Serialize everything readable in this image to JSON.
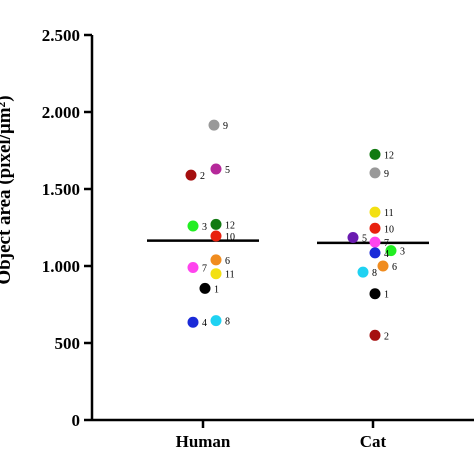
{
  "chart_data": {
    "type": "scatter",
    "ylabel": "Object area (pixel/μm²)",
    "ylim": [
      0,
      2500
    ],
    "y_ticks": [
      {
        "value": 0,
        "label": "0"
      },
      {
        "value": 500,
        "label": "500"
      },
      {
        "value": 1000,
        "label": "1.000"
      },
      {
        "value": 1500,
        "label": "1.500"
      },
      {
        "value": 2000,
        "label": "2.000"
      },
      {
        "value": 2500,
        "label": "2.500"
      }
    ],
    "categories": [
      "Human",
      "Cat"
    ],
    "series": [
      {
        "category": "Human",
        "mean": 1165,
        "points": [
          {
            "label": "9",
            "value": 1915,
            "color": "#999999",
            "offset": 0.55
          },
          {
            "label": "5",
            "value": 1630,
            "color": "#b5299a",
            "offset": 0.65
          },
          {
            "label": "2",
            "value": 1590,
            "color": "#a50f0f",
            "offset": -0.6
          },
          {
            "label": "3",
            "value": 1260,
            "color": "#22ee22",
            "offset": -0.5
          },
          {
            "label": "12",
            "value": 1270,
            "color": "#127a12",
            "offset": 0.65
          },
          {
            "label": "10",
            "value": 1195,
            "color": "#e8200e",
            "offset": 0.65
          },
          {
            "label": "7",
            "value": 990,
            "color": "#ff44ee",
            "offset": -0.5
          },
          {
            "label": "6",
            "value": 1040,
            "color": "#f08c1f",
            "offset": 0.65
          },
          {
            "label": "11",
            "value": 950,
            "color": "#f3e012",
            "offset": 0.65
          },
          {
            "label": "1",
            "value": 855,
            "color": "#000000",
            "offset": 0.1
          },
          {
            "label": "4",
            "value": 635,
            "color": "#1a2ad8",
            "offset": -0.5
          },
          {
            "label": "8",
            "value": 645,
            "color": "#1fd2f2",
            "offset": 0.65
          }
        ]
      },
      {
        "category": "Cat",
        "mean": 1150,
        "points": [
          {
            "label": "12",
            "value": 1725,
            "color": "#127a12",
            "offset": 0.1
          },
          {
            "label": "9",
            "value": 1605,
            "color": "#999999",
            "offset": 0.1
          },
          {
            "label": "11",
            "value": 1350,
            "color": "#f3e012",
            "offset": 0.1
          },
          {
            "label": "10",
            "value": 1245,
            "color": "#e8200e",
            "offset": 0.1
          },
          {
            "label": "5",
            "value": 1185,
            "color": "#6a1bb0",
            "offset": -1.0
          },
          {
            "label": "7",
            "value": 1155,
            "color": "#ff44ee",
            "offset": 0.1
          },
          {
            "label": "3",
            "value": 1100,
            "color": "#22ee22",
            "offset": 0.9
          },
          {
            "label": "4",
            "value": 1085,
            "color": "#1a2ad8",
            "offset": 0.1
          },
          {
            "label": "6",
            "value": 1000,
            "color": "#f08c1f",
            "offset": 0.5
          },
          {
            "label": "8",
            "value": 960,
            "color": "#1fd2f2",
            "offset": -0.5
          },
          {
            "label": "1",
            "value": 820,
            "color": "#000000",
            "offset": 0.1
          },
          {
            "label": "2",
            "value": 550,
            "color": "#a50f0f",
            "offset": 0.1
          }
        ]
      }
    ],
    "grid": false,
    "legend": "none"
  }
}
